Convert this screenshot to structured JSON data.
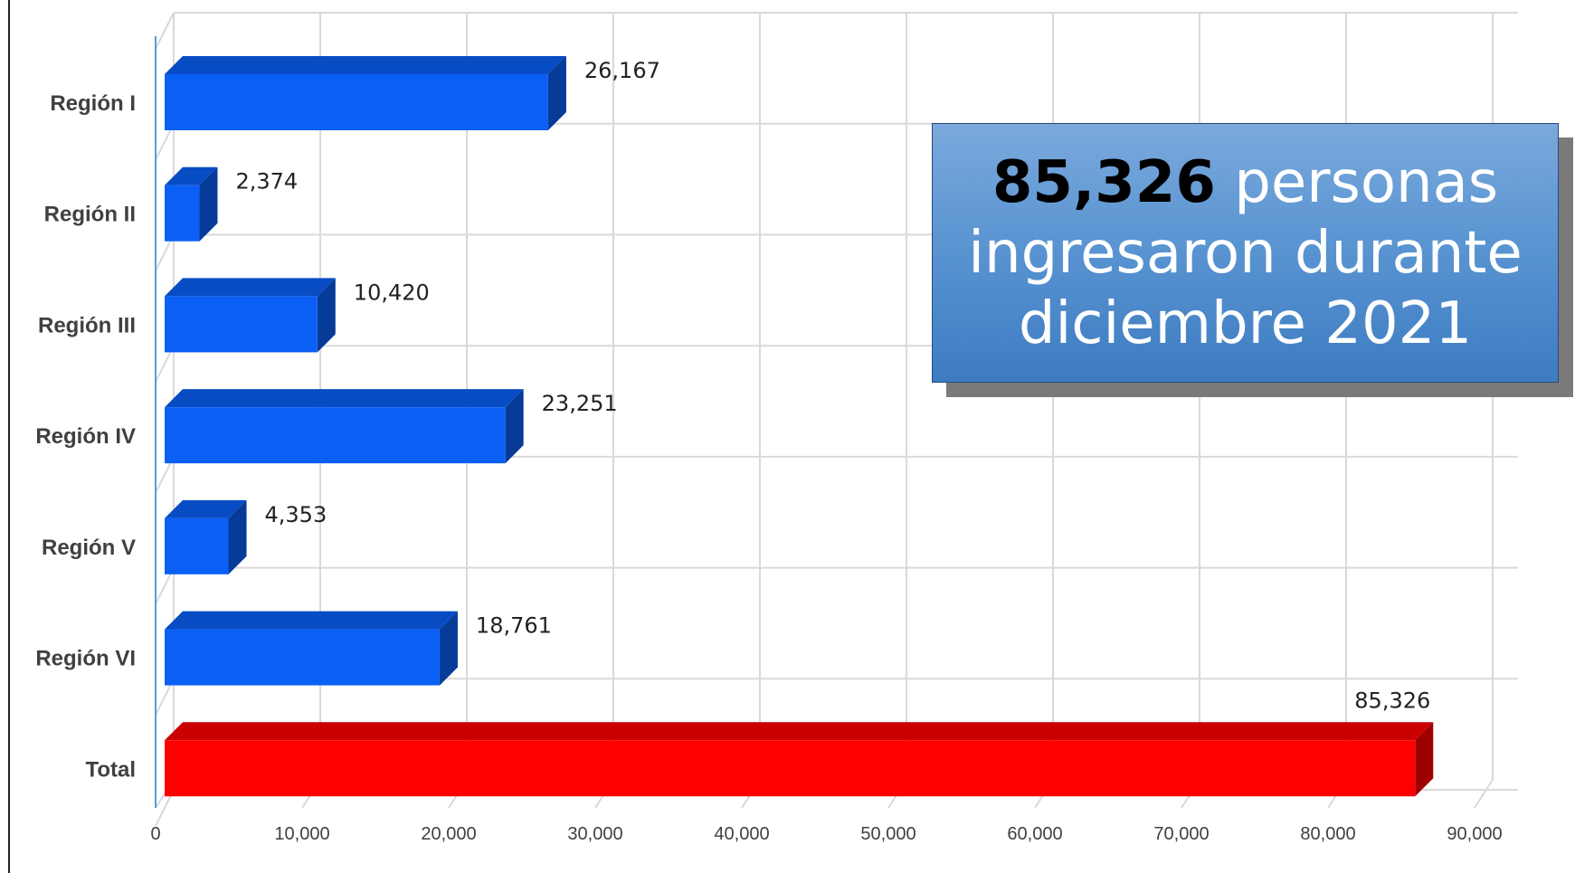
{
  "chart_data": {
    "type": "bar",
    "orientation": "horizontal",
    "style": "3d",
    "categories": [
      "Región I",
      "Región II",
      "Región III",
      "Región IV",
      "Región V",
      "Región VI",
      "Total"
    ],
    "values": [
      26167,
      2374,
      10420,
      23251,
      4353,
      18761,
      85326
    ],
    "value_labels": [
      "26,167",
      "2,374",
      "10,420",
      "23,251",
      "4,353",
      "18,761",
      "85,326"
    ],
    "bar_colors": [
      "#0a5ff5",
      "#0a5ff5",
      "#0a5ff5",
      "#0a5ff5",
      "#0a5ff5",
      "#0a5ff5",
      "#ff0000"
    ],
    "xlim": [
      0,
      90000
    ],
    "x_ticks": [
      "0",
      "10,000",
      "20,000",
      "30,000",
      "40,000",
      "50,000",
      "60,000",
      "70,000",
      "80,000",
      "90,000"
    ],
    "grid": true
  },
  "callout": {
    "highlight": "85,326",
    "text_line1": "personas",
    "text_line2": "ingresaron durante",
    "text_line3": "diciembre 2021",
    "bg_color": "#5b95d2"
  }
}
